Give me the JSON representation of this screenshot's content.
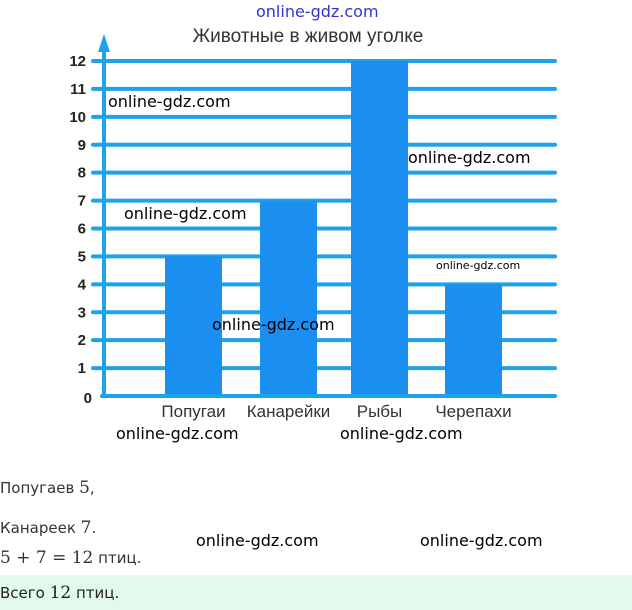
{
  "watermark": "online-gdz.com",
  "chart_data": {
    "type": "bar",
    "title": "Животные в живом уголке",
    "categories": [
      "Попугаи",
      "Канарейки",
      "Рыбы",
      "Черепахи"
    ],
    "values": [
      5,
      7,
      12,
      4
    ],
    "ylim": [
      0,
      12
    ],
    "yticks": [
      "0",
      "1",
      "2",
      "3",
      "4",
      "5",
      "6",
      "7",
      "8",
      "9",
      "10",
      "11",
      "12"
    ],
    "grid": true,
    "colors": {
      "bar": "#1a8ff0",
      "grid": "#1ea3ea",
      "axis": "#1ea3ea"
    }
  },
  "solution": {
    "line1_text": "Попугаев ",
    "line1_num": "5",
    "line1_end": ",",
    "line2_text": "Канареек ",
    "line2_num": "7",
    "line2_end": ".",
    "line3_expr": "5 + 7 = 12",
    "line3_text": " птиц.",
    "answer_text": "Всего ",
    "answer_num": "12",
    "answer_end": " птиц.",
    "answer_bg": "#e2f9ec"
  }
}
